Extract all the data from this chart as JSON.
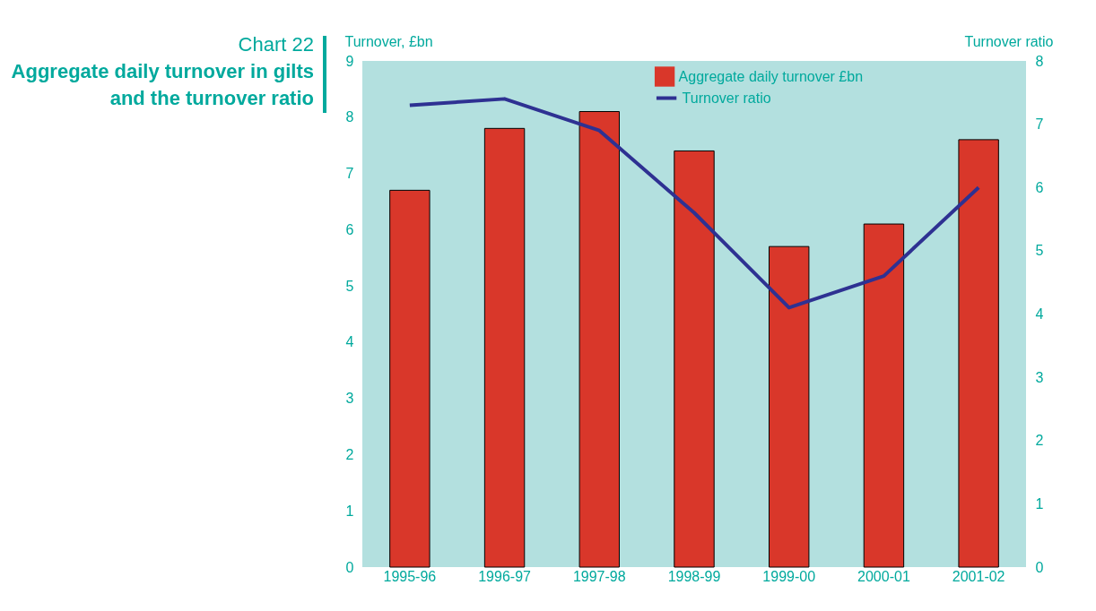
{
  "chart_data": {
    "type": "bar",
    "subtitle": "Chart 22",
    "title": "Aggregate daily turnover in gilts and the turnover ratio",
    "ylabel": "Turnover, £bn",
    "y2label": "Turnover ratio",
    "categories": [
      "1995-96",
      "1996-97",
      "1997-98",
      "1998-99",
      "1999-00",
      "2000-01",
      "2001-02"
    ],
    "series": [
      {
        "name": "Aggregate daily turnover £bn",
        "color": "#d9372a",
        "values": [
          6.7,
          7.8,
          8.1,
          7.4,
          5.7,
          6.1,
          7.6
        ]
      },
      {
        "name": "Turnover ratio",
        "type": "line",
        "axis": "y2",
        "color": "#2e3192",
        "values": [
          7.3,
          7.4,
          6.9,
          5.6,
          4.1,
          4.6,
          6.0
        ]
      }
    ],
    "ylim": [
      0,
      9
    ],
    "yticks": [
      0,
      1,
      2,
      3,
      4,
      5,
      6,
      7,
      8,
      9
    ],
    "y2lim": [
      0,
      8
    ],
    "y2ticks": [
      0,
      1,
      2,
      3,
      4,
      5,
      6,
      7,
      8
    ],
    "grid": false,
    "legend": "top right"
  }
}
